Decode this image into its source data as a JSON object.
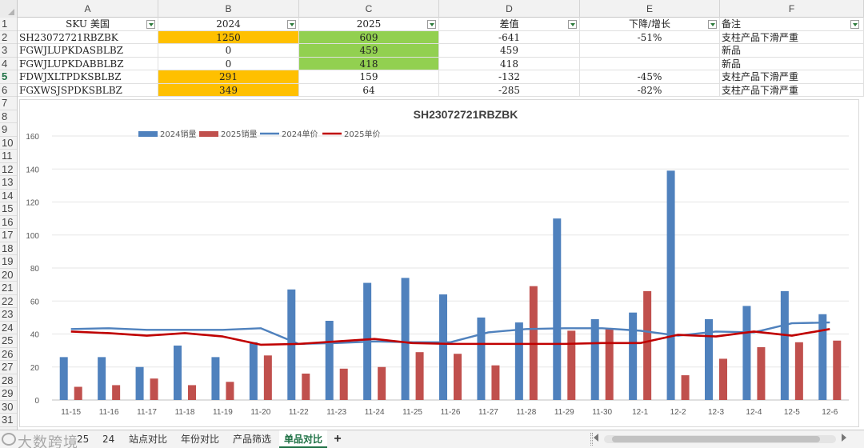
{
  "sheet": {
    "column_letters": [
      "A",
      "B",
      "C",
      "D",
      "E",
      "F"
    ],
    "row_numbers": [
      "1",
      "2",
      "3",
      "4",
      "5",
      "6",
      "7",
      "8",
      "9",
      "10",
      "11",
      "12",
      "13",
      "14",
      "15",
      "16",
      "17",
      "18",
      "19",
      "20",
      "21",
      "22",
      "23",
      "24",
      "25",
      "26",
      "27",
      "28",
      "29",
      "30",
      "31"
    ],
    "active_row": "5",
    "headers": [
      "SKU 美国",
      "2024",
      "2025",
      "差值",
      "下降/增长",
      "备注"
    ],
    "rows": [
      {
        "sku": "SH23072721RBZBK",
        "y2024": "1250",
        "y2025": "609",
        "diff": "-641",
        "change": "-51%",
        "note": "支柱产品下滑严重"
      },
      {
        "sku": "FGWJLUPKDASBLBZ",
        "y2024": "0",
        "y2025": "459",
        "diff": "459",
        "change": "",
        "note": "新品"
      },
      {
        "sku": "FGWJLUPKDABBLBZ",
        "y2024": "0",
        "y2025": "418",
        "diff": "418",
        "change": "",
        "note": "新品"
      },
      {
        "sku": "FDWJXLTPDKSBLBZ",
        "y2024": "291",
        "y2025": "159",
        "diff": "-132",
        "change": "-45%",
        "note": "支柱产品下滑严重"
      },
      {
        "sku": "FGXWSJSPDKSBLBZ",
        "y2024": "349",
        "y2025": "64",
        "diff": "-285",
        "change": "-82%",
        "note": "支柱产品下滑严重"
      }
    ],
    "highlight_colors": {
      "orange": "#ffc000",
      "green": "#92d050"
    }
  },
  "chart_data": {
    "type": "bar",
    "title": "SH23072721RBZBK",
    "categories": [
      "11-15",
      "11-16",
      "11-17",
      "11-18",
      "11-19",
      "11-20",
      "11-22",
      "11-23",
      "11-24",
      "11-25",
      "11-26",
      "11-27",
      "11-28",
      "11-29",
      "11-30",
      "12-1",
      "12-2",
      "12-3",
      "12-4",
      "12-5",
      "12-6"
    ],
    "ylim": [
      0,
      160
    ],
    "yticks": [
      0,
      20,
      40,
      60,
      80,
      100,
      120,
      140,
      160
    ],
    "grid": true,
    "legend_placement": "top-left",
    "series": [
      {
        "name": "2024销量",
        "kind": "bar",
        "color": "#4f81bd",
        "values": [
          26,
          26,
          20,
          33,
          26,
          35,
          67,
          48,
          71,
          74,
          64,
          50,
          47,
          110,
          49,
          53,
          139,
          49,
          57,
          66,
          52
        ]
      },
      {
        "name": "2025销量",
        "kind": "bar",
        "color": "#c0504d",
        "values": [
          8,
          9,
          13,
          9,
          11,
          27,
          16,
          19,
          20,
          29,
          28,
          21,
          69,
          42,
          43,
          66,
          15,
          25,
          32,
          35,
          36
        ]
      },
      {
        "name": "2024单价",
        "kind": "line",
        "color": "#4f81bd",
        "values": [
          43,
          43.5,
          42.5,
          42.5,
          42.5,
          43.5,
          34,
          34.5,
          35.5,
          35,
          35,
          41,
          43,
          43.5,
          43.5,
          42,
          39,
          41.5,
          41,
          46.5,
          47
        ]
      },
      {
        "name": "2025单价",
        "kind": "line",
        "color": "#c00000",
        "values": [
          41.5,
          40.5,
          39,
          40.5,
          38.5,
          33.5,
          34,
          35.5,
          37,
          34.5,
          34,
          34,
          34,
          34,
          34.5,
          34.5,
          39.5,
          38.5,
          41.5,
          39,
          43
        ]
      }
    ]
  },
  "tabs": {
    "partial_left": "25",
    "items": [
      "24",
      "站点对比",
      "年份对比",
      "产品筛选",
      "单品对比"
    ],
    "active": "单品对比",
    "add_label": "+"
  },
  "watermark": "大数跨境"
}
